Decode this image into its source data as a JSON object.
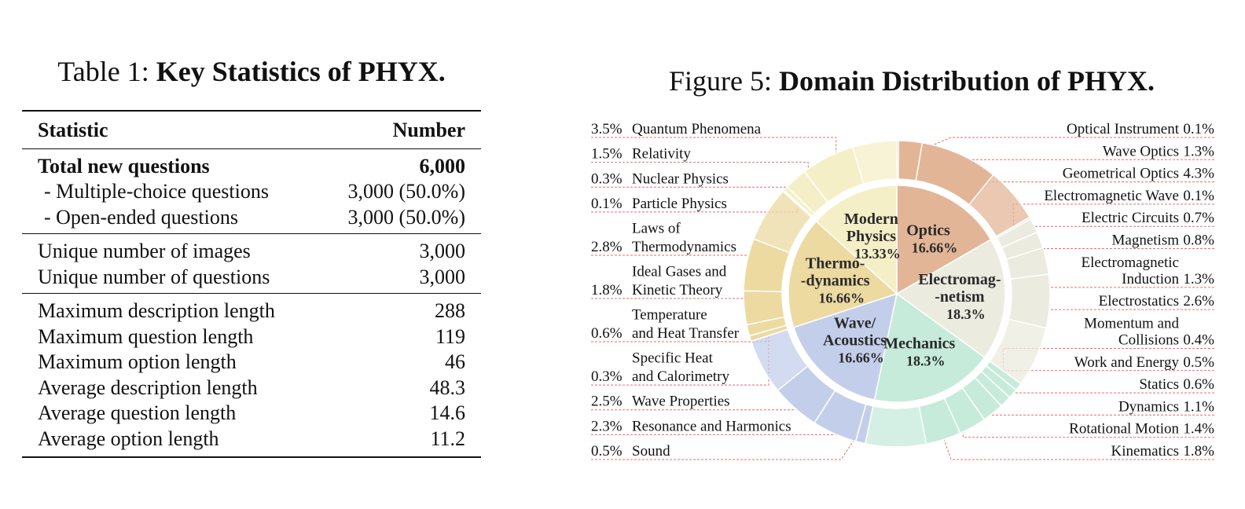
{
  "table": {
    "caption_prefix": "Table 1: ",
    "caption_bold": "Key Statistics of ",
    "caption_name_p": "P",
    "caption_name_hy": "HY",
    "caption_name_x": "X.",
    "header": {
      "statistic": "Statistic",
      "number": "Number"
    },
    "group1": [
      {
        "label": "Total new questions",
        "value": "6,000",
        "bold": true
      },
      {
        "label": "- Multiple-choice questions",
        "value": "3,000 (50.0%)",
        "bold": false
      },
      {
        "label": "- Open-ended questions",
        "value": "3,000 (50.0%)",
        "bold": false
      }
    ],
    "group2": [
      {
        "label": "Unique number of images",
        "value": "3,000"
      },
      {
        "label": "Unique number of questions",
        "value": "3,000"
      }
    ],
    "group3": [
      {
        "label": "Maximum description length",
        "value": "288"
      },
      {
        "label": "Maximum question length",
        "value": "119"
      },
      {
        "label": "Maximum option length",
        "value": "46"
      },
      {
        "label": "Average description length",
        "value": "48.3"
      },
      {
        "label": "Average question length",
        "value": "14.6"
      },
      {
        "label": "Average option length",
        "value": "11.2"
      }
    ]
  },
  "figure": {
    "caption_prefix": "Figure 5: ",
    "caption_bold": "Domain Distribution of ",
    "caption_name_p": "P",
    "caption_name_hy": "HY",
    "caption_name_x": "X."
  },
  "chart_data": {
    "type": "pie",
    "domains": [
      {
        "name": "Optics",
        "label_lines": [
          "Optics"
        ],
        "pct": "16.66%",
        "value": 16.66,
        "color": "#e3b597"
      },
      {
        "name": "Electromagnetism",
        "label_lines": [
          "Electromag-",
          "-netism"
        ],
        "pct": "18.3%",
        "value": 18.3,
        "color": "#ecebdf"
      },
      {
        "name": "Mechanics",
        "label_lines": [
          "Mechanics"
        ],
        "pct": "18.3%",
        "value": 18.3,
        "color": "#c6ebdb"
      },
      {
        "name": "Wave/Acoustics",
        "label_lines": [
          "Wave/",
          "Acoustics"
        ],
        "pct": "16.66%",
        "value": 16.66,
        "color": "#c3cfea"
      },
      {
        "name": "Thermodynamics",
        "label_lines": [
          "Thermo-",
          "-dynamics"
        ],
        "pct": "16.66%",
        "value": 16.66,
        "color": "#ecdaa1"
      },
      {
        "name": "Modern Physics",
        "label_lines": [
          "Modern",
          "Physics"
        ],
        "pct": "13.33%",
        "value": 13.33,
        "color": "#f5efc8"
      }
    ],
    "subdomains": [
      {
        "domain": "Optics",
        "name": "Optical Instrument",
        "pct": "0.1%",
        "value": 0.1
      },
      {
        "domain": "Optics",
        "name": "Wave Optics",
        "pct": "1.3%",
        "value": 1.3
      },
      {
        "domain": "Optics",
        "name": "Geometrical Optics",
        "pct": "4.3%",
        "value": 4.3
      },
      {
        "domain": "Electromagnetism",
        "name": "Electromagnetic Wave",
        "pct": "0.1%",
        "value": 0.1
      },
      {
        "domain": "Electromagnetism",
        "name": "Electric Circuits",
        "pct": "0.7%",
        "value": 0.7
      },
      {
        "domain": "Electromagnetism",
        "name": "Magnetism",
        "pct": "0.8%",
        "value": 0.8
      },
      {
        "domain": "Electromagnetism",
        "name": "Electromagnetic Induction",
        "pct": "1.3%",
        "value": 1.3
      },
      {
        "domain": "Electromagnetism",
        "name": "Electrostatics",
        "pct": "2.6%",
        "value": 2.6
      },
      {
        "domain": "Mechanics",
        "name": "Momentum and Collisions",
        "pct": "0.4%",
        "value": 0.4
      },
      {
        "domain": "Mechanics",
        "name": "Work and Energy",
        "pct": "0.5%",
        "value": 0.5
      },
      {
        "domain": "Mechanics",
        "name": "Statics",
        "pct": "0.6%",
        "value": 0.6
      },
      {
        "domain": "Mechanics",
        "name": "Dynamics",
        "pct": "1.1%",
        "value": 1.1
      },
      {
        "domain": "Mechanics",
        "name": "Rotational Motion",
        "pct": "1.4%",
        "value": 1.4
      },
      {
        "domain": "Mechanics",
        "name": "Kinematics",
        "pct": "1.8%",
        "value": 1.8
      },
      {
        "domain": "Wave/Acoustics",
        "name": "Sound",
        "pct": "0.5%",
        "value": 0.5
      },
      {
        "domain": "Wave/Acoustics",
        "name": "Resonance and Harmonics",
        "pct": "2.3%",
        "value": 2.3
      },
      {
        "domain": "Wave/Acoustics",
        "name": "Wave Properties",
        "pct": "2.5%",
        "value": 2.5
      },
      {
        "domain": "Thermodynamics",
        "name": "Specific Heat and Calorimetry",
        "pct": "0.3%",
        "value": 0.3
      },
      {
        "domain": "Thermodynamics",
        "name": "Temperature and Heat Transfer",
        "pct": "0.6%",
        "value": 0.6
      },
      {
        "domain": "Thermodynamics",
        "name": "Ideal Gases and Kinetic Theory",
        "pct": "1.8%",
        "value": 1.8
      },
      {
        "domain": "Thermodynamics",
        "name": "Laws of Thermodynamics",
        "pct": "2.8%",
        "value": 2.8
      },
      {
        "domain": "Modern Physics",
        "name": "Particle Physics",
        "pct": "0.1%",
        "value": 0.1
      },
      {
        "domain": "Modern Physics",
        "name": "Nuclear Physics",
        "pct": "0.3%",
        "value": 0.3
      },
      {
        "domain": "Modern Physics",
        "name": "Relativity",
        "pct": "1.5%",
        "value": 1.5
      },
      {
        "domain": "Modern Physics",
        "name": "Quantum Phenomena",
        "pct": "3.5%",
        "value": 3.5
      }
    ],
    "labels": [
      {
        "side": "right",
        "lines": [
          "Optical Instrument"
        ],
        "pct": "0.1%"
      },
      {
        "side": "right",
        "lines": [
          "Wave Optics"
        ],
        "pct": "1.3%"
      },
      {
        "side": "right",
        "lines": [
          "Geometrical Optics"
        ],
        "pct": "4.3%"
      },
      {
        "side": "right",
        "lines": [
          "Electromagnetic Wave"
        ],
        "pct": "0.1%"
      },
      {
        "side": "right",
        "lines": [
          "Electric Circuits"
        ],
        "pct": "0.7%"
      },
      {
        "side": "right",
        "lines": [
          "Magnetism"
        ],
        "pct": "0.8%"
      },
      {
        "side": "right",
        "lines": [
          "Electromagnetic",
          "Induction"
        ],
        "pct": "1.3%"
      },
      {
        "side": "right",
        "lines": [
          "Electrostatics"
        ],
        "pct": "2.6%"
      },
      {
        "side": "right",
        "lines": [
          "Momentum and",
          "Collisions"
        ],
        "pct": "0.4%"
      },
      {
        "side": "right",
        "lines": [
          "Work and Energy"
        ],
        "pct": "0.5%"
      },
      {
        "side": "right",
        "lines": [
          "Statics"
        ],
        "pct": "0.6%"
      },
      {
        "side": "right",
        "lines": [
          "Dynamics"
        ],
        "pct": "1.1%"
      },
      {
        "side": "right",
        "lines": [
          "Rotational Motion"
        ],
        "pct": "1.4%"
      },
      {
        "side": "right",
        "lines": [
          "Kinematics"
        ],
        "pct": "1.8%"
      },
      {
        "side": "left",
        "lines": [
          "Quantum Phenomena"
        ],
        "pct": "3.5%"
      },
      {
        "side": "left",
        "lines": [
          "Relativity"
        ],
        "pct": "1.5%"
      },
      {
        "side": "left",
        "lines": [
          "Nuclear Physics"
        ],
        "pct": "0.3%"
      },
      {
        "side": "left",
        "lines": [
          "Particle Physics"
        ],
        "pct": "0.1%"
      },
      {
        "side": "left",
        "lines": [
          "Laws of",
          "Thermodynamics"
        ],
        "pct": "2.8%"
      },
      {
        "side": "left",
        "lines": [
          "Ideal Gases and",
          "Kinetic Theory"
        ],
        "pct": "1.8%"
      },
      {
        "side": "left",
        "lines": [
          "Temperature",
          "and Heat Transfer"
        ],
        "pct": "0.6%"
      },
      {
        "side": "left",
        "lines": [
          "Specific Heat",
          " and Calorimetry"
        ],
        "pct": "0.3%"
      },
      {
        "side": "left",
        "lines": [
          "Wave Properties"
        ],
        "pct": "2.5%"
      },
      {
        "side": "left",
        "lines": [
          "Resonance and Harmonics"
        ],
        "pct": "2.3%"
      },
      {
        "side": "left",
        "lines": [
          "Sound"
        ],
        "pct": "0.5%"
      }
    ],
    "leader_color": "#ec6b6b"
  }
}
